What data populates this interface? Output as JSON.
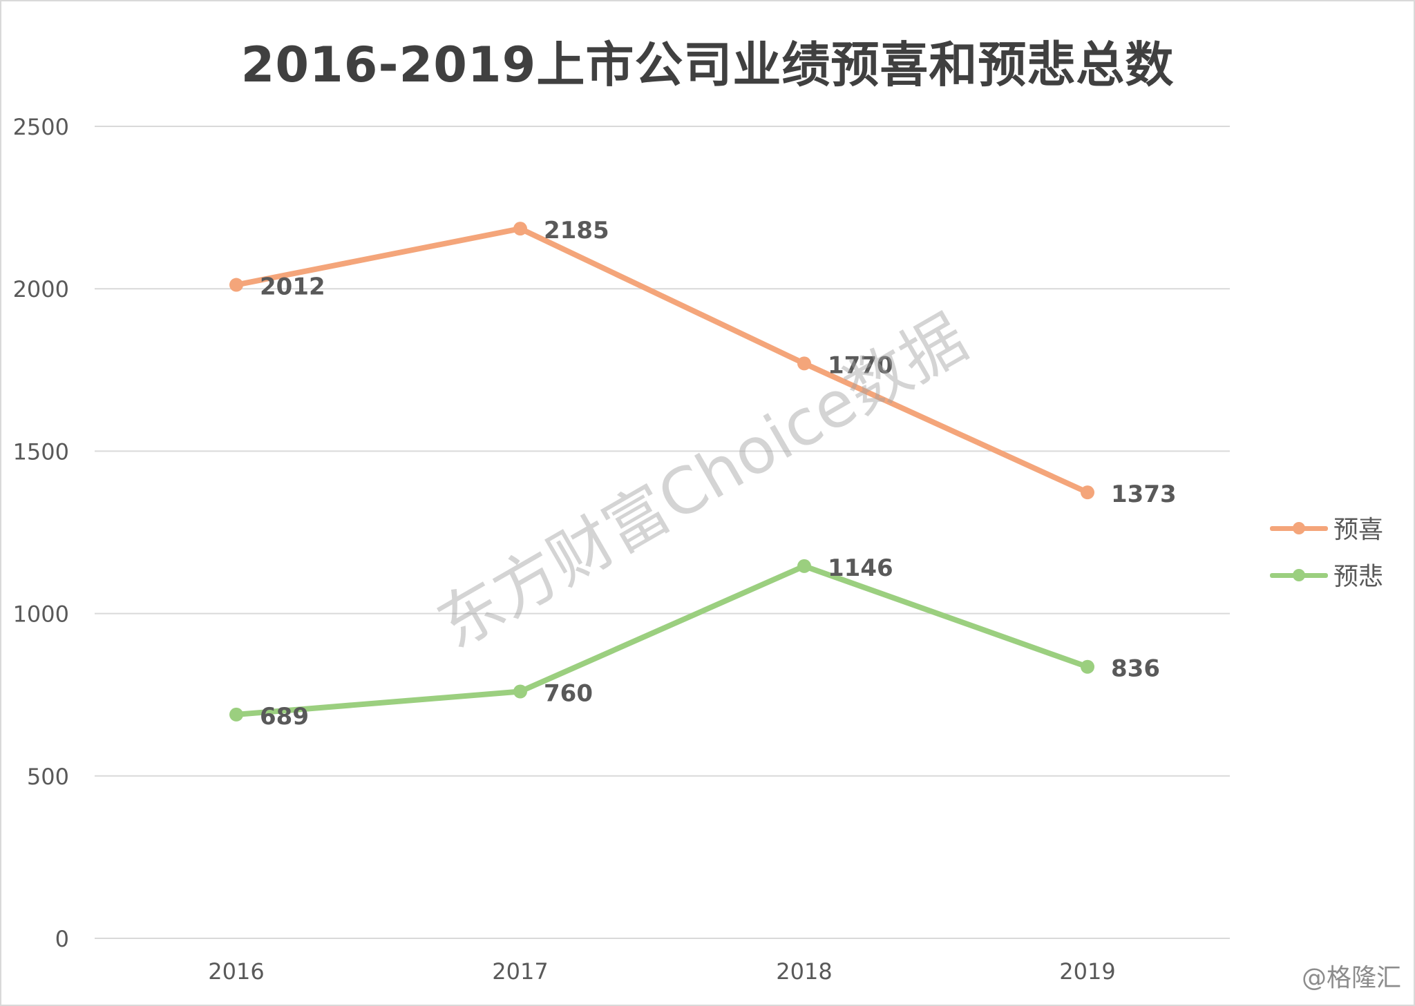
{
  "chart_data": {
    "type": "line",
    "title": "2016-2019上市公司业绩预喜和预悲总数",
    "categories": [
      "2016",
      "2017",
      "2018",
      "2019"
    ],
    "ylim": [
      0,
      2500
    ],
    "yticks": [
      0,
      500,
      1000,
      1500,
      2000,
      2500
    ],
    "grid": true,
    "legend": "right",
    "series": [
      {
        "name": "预喜",
        "values": [
          2012,
          2185,
          1770,
          1373
        ],
        "color": "#f4a57a"
      },
      {
        "name": "预悲",
        "values": [
          689,
          760,
          1146,
          836
        ],
        "color": "#9bcf7f"
      }
    ]
  },
  "watermark": "东方财富Choice数据",
  "credit": "@格隆汇"
}
